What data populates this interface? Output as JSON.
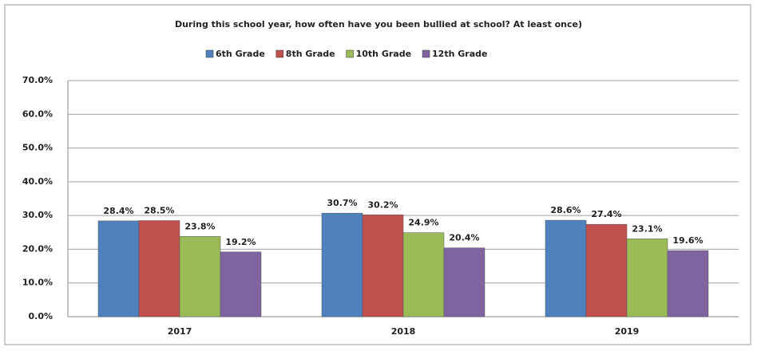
{
  "chart_data": {
    "type": "bar",
    "title": "During this school year, how often have you been bullied at school? At least once)",
    "categories": [
      "2017",
      "2018",
      "2019"
    ],
    "series": [
      {
        "name": "6th Grade",
        "color": "#4f81bd",
        "values": [
          28.4,
          30.7,
          28.6
        ],
        "value_labels": [
          "28.4%",
          "30.7%",
          "28.6%"
        ]
      },
      {
        "name": "8th Grade",
        "color": "#c0504d",
        "values": [
          28.5,
          30.2,
          27.4
        ],
        "value_labels": [
          "28.5%",
          "30.2%",
          "27.4%"
        ]
      },
      {
        "name": "10th Grade",
        "color": "#9bbb59",
        "values": [
          23.8,
          24.9,
          23.1
        ],
        "value_labels": [
          "23.8%",
          "24.9%",
          "23.1%"
        ]
      },
      {
        "name": "12th Grade",
        "color": "#8064a2",
        "values": [
          19.2,
          20.4,
          19.6
        ],
        "value_labels": [
          "19.2%",
          "20.4%",
          "19.6%"
        ]
      }
    ],
    "ylim": [
      0,
      70
    ],
    "yticks": [
      {
        "value": 0,
        "label": "0.0%"
      },
      {
        "value": 10,
        "label": "10.0%"
      },
      {
        "value": 20,
        "label": "20.0%"
      },
      {
        "value": 30,
        "label": "30.0%"
      },
      {
        "value": 40,
        "label": "40.0%"
      },
      {
        "value": 50,
        "label": "50.0%"
      },
      {
        "value": 60,
        "label": "60.0%"
      },
      {
        "value": 70,
        "label": "70.0%"
      }
    ],
    "grid": true,
    "legend": "top"
  }
}
